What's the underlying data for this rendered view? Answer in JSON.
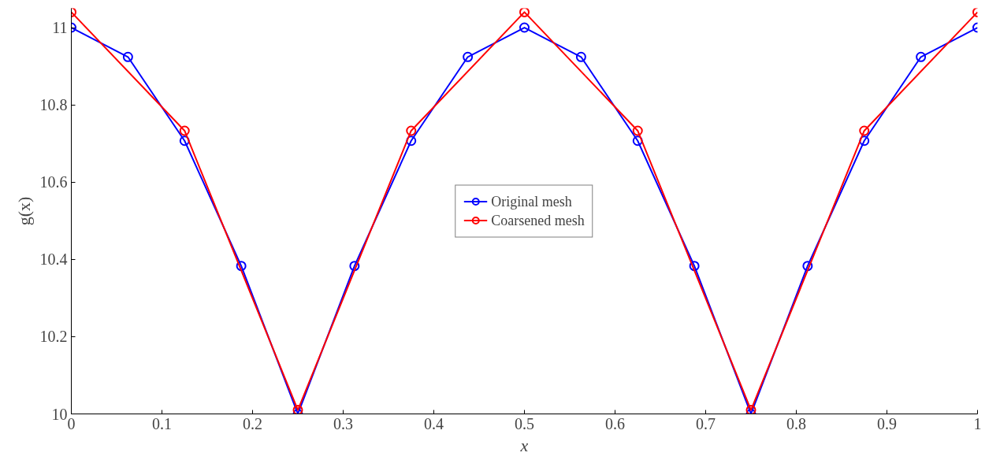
{
  "chart_data": {
    "type": "line",
    "xlabel": "x",
    "ylabel": "g(x)",
    "xlim": [
      0,
      1
    ],
    "ylim": [
      10,
      11.05
    ],
    "xticks": [
      0,
      0.1,
      0.2,
      0.3,
      0.4,
      0.5,
      0.6,
      0.7,
      0.8,
      0.9,
      1
    ],
    "yticks": [
      10,
      10.2,
      10.4,
      10.6,
      10.8,
      11
    ],
    "grid": false,
    "legend": "center",
    "marker": "circle",
    "line_style": "solid",
    "series": [
      {
        "name": "Original mesh",
        "color": "#0000ff",
        "x": [
          0,
          0.0625,
          0.125,
          0.1875,
          0.25,
          0.3125,
          0.375,
          0.4375,
          0.5,
          0.5625,
          0.625,
          0.6875,
          0.75,
          0.8125,
          0.875,
          0.9375,
          1
        ],
        "values": [
          11,
          10.924,
          10.707,
          10.383,
          10,
          10.383,
          10.707,
          10.924,
          11,
          10.924,
          10.707,
          10.383,
          10,
          10.383,
          10.707,
          10.924,
          11
        ]
      },
      {
        "name": "Coarsened mesh",
        "color": "#ff0000",
        "x": [
          0,
          0.125,
          0.25,
          0.375,
          0.5,
          0.625,
          0.75,
          0.875,
          1
        ],
        "values": [
          11.04,
          10.733,
          10.01,
          10.733,
          11.04,
          10.733,
          10.01,
          10.733,
          11.04
        ]
      }
    ]
  }
}
